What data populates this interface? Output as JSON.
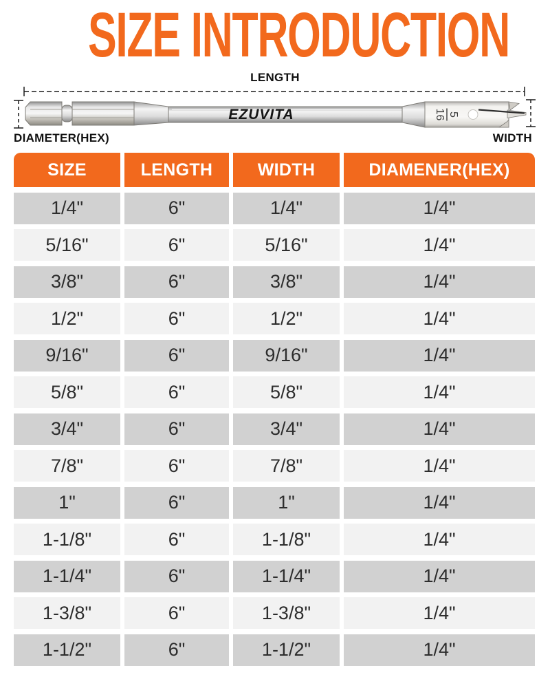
{
  "title": "SIZE INTRODUCTION",
  "diagram": {
    "length_label": "LENGTH",
    "diameter_label": "DIAMETER(HEX)",
    "width_label": "WIDTH",
    "brand": "EZUVITA",
    "blade_marking": {
      "numerator": "5",
      "denominator": "16"
    }
  },
  "table": {
    "headers": [
      "SIZE",
      "LENGTH",
      "WIDTH",
      "DIAMENER(HEX)"
    ],
    "rows": [
      [
        "1/4\"",
        "6\"",
        "1/4\"",
        "1/4\""
      ],
      [
        "5/16\"",
        "6\"",
        "5/16\"",
        "1/4\""
      ],
      [
        "3/8\"",
        "6\"",
        "3/8\"",
        "1/4\""
      ],
      [
        "1/2\"",
        "6\"",
        "1/2\"",
        "1/4\""
      ],
      [
        "9/16\"",
        "6\"",
        "9/16\"",
        "1/4\""
      ],
      [
        "5/8\"",
        "6\"",
        "5/8\"",
        "1/4\""
      ],
      [
        "3/4\"",
        "6\"",
        "3/4\"",
        "1/4\""
      ],
      [
        "7/8\"",
        "6\"",
        "7/8\"",
        "1/4\""
      ],
      [
        "1\"",
        "6\"",
        "1\"",
        "1/4\""
      ],
      [
        "1-1/8\"",
        "6\"",
        "1-1/8\"",
        "1/4\""
      ],
      [
        "1-1/4\"",
        "6\"",
        "1-1/4\"",
        "1/4\""
      ],
      [
        "1-3/8\"",
        "6\"",
        "1-3/8\"",
        "1/4\""
      ],
      [
        "1-1/2\"",
        "6\"",
        "1-1/2\"",
        "1/4\""
      ]
    ]
  },
  "colors": {
    "accent_orange": "#F2691D",
    "row_dark": "#D1D1D1",
    "row_light": "#F2F2F2",
    "header_text": "#FFFFFF",
    "body_text": "#2D2D2D"
  }
}
